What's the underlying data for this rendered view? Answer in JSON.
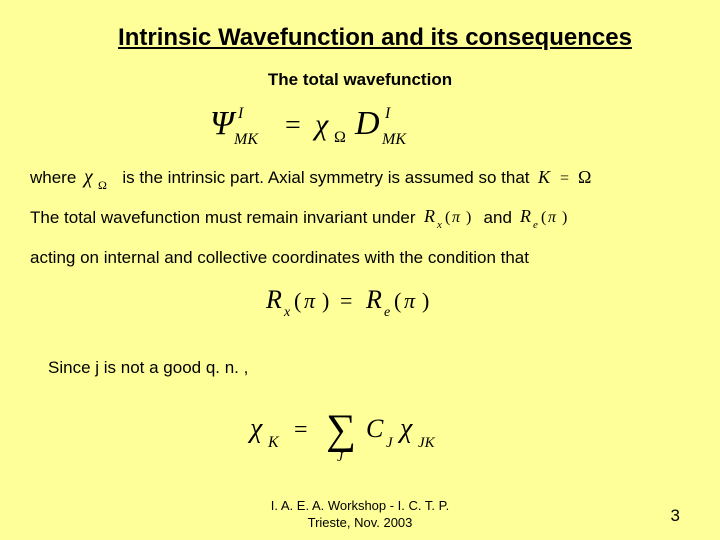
{
  "colors": {
    "background": "#ffff99",
    "text": "#000000"
  },
  "typography": {
    "title_fontsize": 24,
    "body_fontsize": 17,
    "footer_fontsize": 13
  },
  "title": "Intrinsic Wavefunction and its consequences",
  "subtitle": "The total wavefunction",
  "equations": {
    "main": "\\Psi^{I}_{MK} = \\chi_{\\Omega} D^{I}_{MK}",
    "chi_omega": "\\chi_{\\Omega}",
    "k_eq_omega": "K = \\Omega",
    "rx_pi": "R_x(\\pi)",
    "re_pi": "R_e(\\pi)",
    "rx_eq_re": "R_x(\\pi) = R_e(\\pi)",
    "chi_sum": "\\chi_{K} = \\sum_{J} C_{J} \\chi_{JK}"
  },
  "lines": {
    "where": "where",
    "intrinsic": "is the intrinsic part. Axial symmetry is assumed so that",
    "invariant": "The total wavefunction must remain invariant under",
    "and": "and",
    "acting": "acting on internal and collective coordinates with the condition that",
    "since": "Since j is not a good q. n. ,"
  },
  "footer": {
    "line1": "I. A. E. A. Workshop - I. C. T. P.",
    "line2": "Trieste, Nov. 2003"
  },
  "page_number": "3"
}
